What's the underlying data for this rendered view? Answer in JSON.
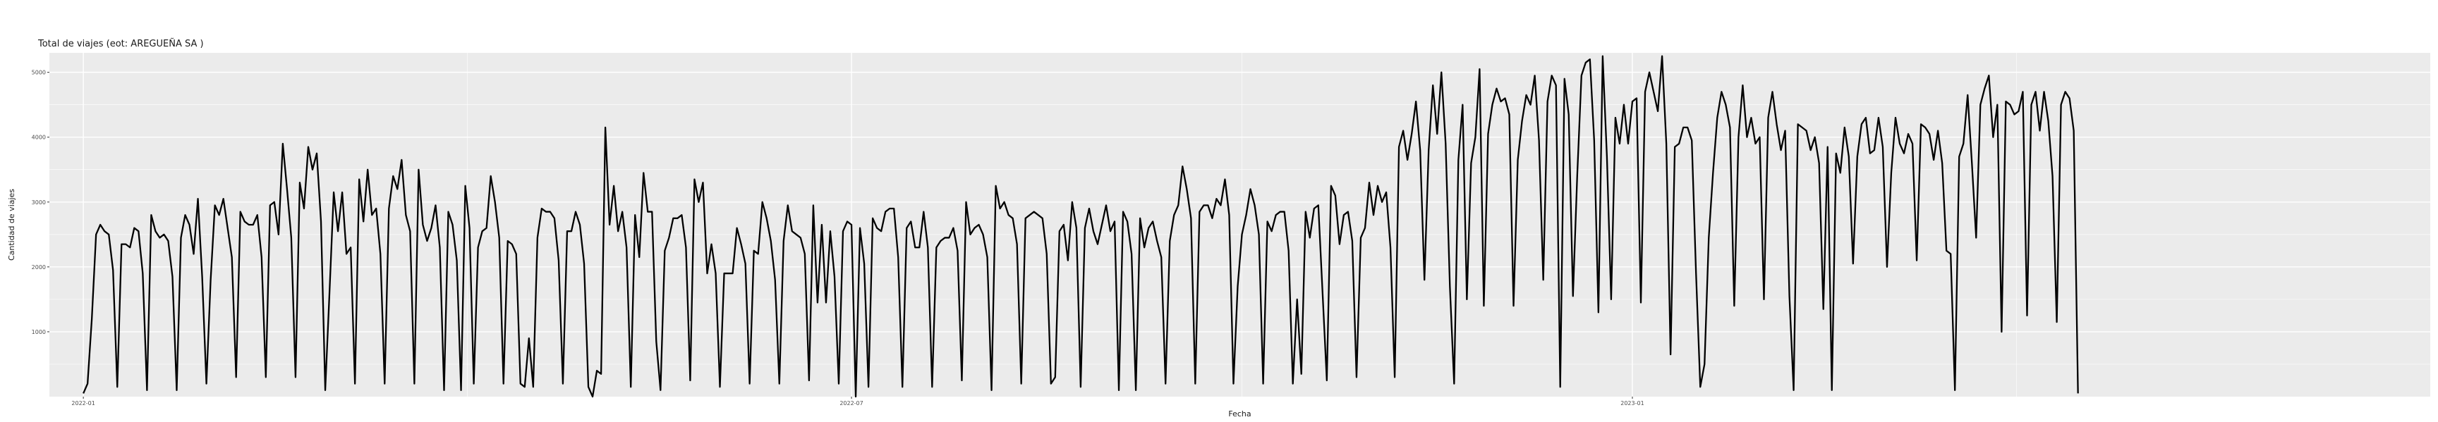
{
  "chart_data": {
    "type": "line",
    "title": "Total de viajes (eot: AREGUEÑA SA )",
    "xlabel": "Fecha",
    "ylabel": "Cantidad de viajes",
    "x_tick_labels": [
      "2022-01",
      "2022-07",
      "2023-01"
    ],
    "y_tick_labels": [
      "1000",
      "2000",
      "3000",
      "4000",
      "5000"
    ],
    "y_ticks": [
      1000,
      2000,
      3000,
      4000,
      5000
    ],
    "ylim": [
      0,
      5300
    ],
    "xlim": [
      "2021-12-24",
      "2023-07-08"
    ],
    "grid": true,
    "legend": "none",
    "colors": {
      "line": "#000000",
      "panel": "#ebebeb",
      "grid": "#ffffff"
    },
    "series": [
      {
        "x_start": "2022-01-01",
        "x_step_days": 1,
        "values": [
          50,
          200,
          1200,
          2500,
          2650,
          2550,
          2500,
          1950,
          150,
          2350,
          2350,
          2300,
          2600,
          2550,
          1900,
          100,
          2800,
          2550,
          2450,
          2500,
          2400,
          1850,
          100,
          2450,
          2800,
          2650,
          2200,
          3050,
          1850,
          200,
          1800,
          2950,
          2800,
          3050,
          2600,
          2150,
          300,
          2850,
          2700,
          2650,
          2650,
          2800,
          2150,
          300,
          2950,
          3000,
          2500,
          3900,
          3200,
          2450,
          300,
          3300,
          2900,
          3850,
          3500,
          3750,
          2700,
          100,
          1600,
          3150,
          2550,
          3150,
          2200,
          2300,
          200,
          3350,
          2700,
          3500,
          2800,
          2900,
          2200,
          200,
          2900,
          3400,
          3200,
          3650,
          2800,
          2550,
          200,
          3500,
          2650,
          2400,
          2600,
          2950,
          2300,
          100,
          2850,
          2650,
          2100,
          100,
          3250,
          2600,
          200,
          2300,
          2550,
          2600,
          3400,
          3000,
          2450,
          200,
          2400,
          2350,
          2200,
          200,
          150,
          900,
          150,
          2450,
          2900,
          2850,
          2850,
          2750,
          2100,
          200,
          2550,
          2550,
          2850,
          2650,
          2050,
          150,
          0,
          400,
          350,
          4150,
          2650,
          3250,
          2550,
          2850,
          2300,
          150,
          2800,
          2150,
          3450,
          2850,
          2850,
          850,
          100,
          2250,
          2450,
          2750,
          2750,
          2800,
          2300,
          250,
          3350,
          3000,
          3300,
          1900,
          2350,
          1900,
          150,
          1900,
          1900,
          1900,
          2600,
          2350,
          2050,
          200,
          2250,
          2200,
          3000,
          2750,
          2400,
          1800,
          200,
          2400,
          2950,
          2550,
          2500,
          2450,
          2200,
          250,
          2950,
          1450,
          2650,
          1450,
          2550,
          1850,
          200,
          2550,
          2700,
          2650,
          0,
          2600,
          2050,
          150,
          2750,
          2600,
          2550,
          2850,
          2900,
          2900,
          2150,
          150,
          2600,
          2700,
          2300,
          2300,
          2850,
          2300,
          150,
          2300,
          2400,
          2450,
          2450,
          2600,
          2250,
          250,
          3000,
          2500,
          2600,
          2650,
          2500,
          2150,
          100,
          3250,
          2900,
          3000,
          2800,
          2750,
          2350,
          200,
          2750,
          2800,
          2850,
          2800,
          2750,
          2200,
          200,
          300,
          2550,
          2650,
          2100,
          3000,
          2600,
          150,
          2600,
          2900,
          2550,
          2350,
          2650,
          2950,
          2550,
          2700,
          100,
          2850,
          2700,
          2200,
          100,
          2750,
          2300,
          2600,
          2700,
          2400,
          2150,
          200,
          2400,
          2800,
          2950,
          3550,
          3200,
          2750,
          200,
          2850,
          2950,
          2950,
          2750,
          3050,
          2950,
          3350,
          2800,
          200,
          1700,
          2500,
          2800,
          3200,
          2950,
          2500,
          200,
          2700,
          2550,
          2800,
          2850,
          2850,
          2250,
          200,
          1500,
          350,
          2850,
          2450,
          2900,
          2950,
          1600,
          250,
          3250,
          3100,
          2350,
          2800,
          2850,
          2400,
          300,
          2450,
          2600,
          3300,
          2800,
          3250,
          3000,
          3150,
          2300,
          300,
          3850,
          4100,
          3650,
          4050,
          4550,
          3800,
          1800,
          3800,
          4800,
          4050,
          5000,
          3900,
          1700,
          200,
          3650,
          4500,
          1500,
          3600,
          4000,
          5050,
          1400,
          4050,
          4500,
          4750,
          4550,
          4600,
          4350,
          1400,
          3650,
          4250,
          4650,
          4500,
          4950,
          3950,
          1800,
          4550,
          4950,
          4800,
          150,
          4900,
          4350,
          1550,
          3400,
          4950,
          5150,
          5200,
          3950,
          1300,
          5250,
          3700,
          1500,
          4300,
          3900,
          4500,
          3900,
          4550,
          4600,
          1450,
          4700,
          5000,
          4700,
          4400,
          5250,
          3900,
          650,
          3850,
          3900,
          4150,
          4150,
          3950,
          1900,
          150,
          500,
          2450,
          3450,
          4300,
          4700,
          4500,
          4150,
          1400,
          4000,
          4800,
          4000,
          4300,
          3900,
          4000,
          1500,
          4300,
          4700,
          4200,
          3800,
          4100,
          1550,
          100,
          4200,
          4150,
          4100,
          3800,
          4000,
          3600,
          1350,
          3850,
          100,
          3750,
          3450,
          4150,
          3700,
          2050,
          3700,
          4200,
          4300,
          3750,
          3800,
          4300,
          3850,
          2000,
          3450,
          4300,
          3900,
          3750,
          4050,
          3900,
          2100,
          4200,
          4150,
          4050,
          3650,
          4100,
          3600,
          2250,
          2200,
          100,
          3700,
          3900,
          4650,
          3600,
          2450,
          4500,
          4750,
          4950,
          4000,
          4500,
          1000,
          4550,
          4500,
          4350,
          4400,
          4700,
          1250,
          4500,
          4700,
          4100,
          4700,
          4250,
          3400,
          1150,
          4500,
          4700,
          4600,
          4100,
          50
        ]
      }
    ]
  }
}
